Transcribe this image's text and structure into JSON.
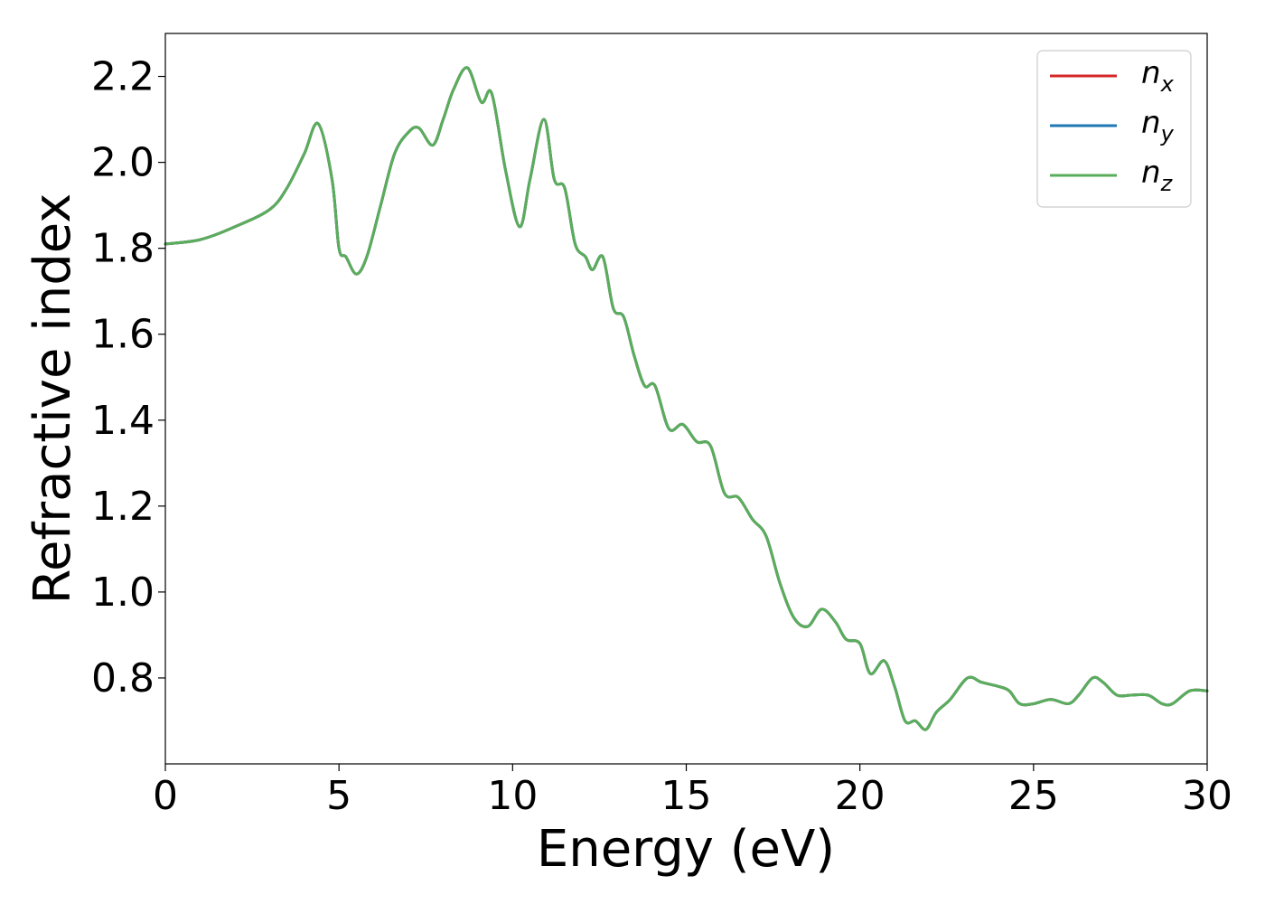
{
  "chart_data": {
    "type": "line",
    "xlabel": "Energy (eV)",
    "ylabel": "Refractive index",
    "xlim": [
      0,
      30
    ],
    "ylim": [
      0.6,
      2.3
    ],
    "xticks": [
      0,
      5,
      10,
      15,
      20,
      25,
      30
    ],
    "xtick_labels": [
      "0",
      "5",
      "10",
      "15",
      "20",
      "25",
      "30"
    ],
    "yticks": [
      0.8,
      1.0,
      1.2,
      1.4,
      1.6,
      1.8,
      2.0,
      2.2
    ],
    "ytick_labels": [
      "0.8",
      "1.0",
      "1.2",
      "1.4",
      "1.6",
      "1.8",
      "2.0",
      "2.2"
    ],
    "grid": false,
    "legend_position": "top-right",
    "legend": [
      {
        "base": "n",
        "sub": "x",
        "color": "#d62728"
      },
      {
        "base": "n",
        "sub": "y",
        "color": "#1f77b4"
      },
      {
        "base": "n",
        "sub": "z",
        "color": "#5aad5a"
      }
    ],
    "x": [
      0,
      1,
      2,
      3,
      3.5,
      4,
      4.4,
      4.8,
      5.0,
      5.2,
      5.5,
      5.8,
      6.2,
      6.6,
      7.0,
      7.3,
      7.7,
      8.0,
      8.3,
      8.7,
      9.1,
      9.4,
      9.8,
      10.2,
      10.5,
      10.9,
      11.2,
      11.5,
      11.8,
      12.1,
      12.3,
      12.6,
      12.9,
      13.2,
      13.5,
      13.8,
      14.1,
      14.5,
      14.9,
      15.3,
      15.7,
      16.1,
      16.5,
      16.9,
      17.3,
      17.7,
      18.1,
      18.5,
      18.9,
      19.3,
      19.6,
      20.0,
      20.3,
      20.7,
      21.0,
      21.3,
      21.6,
      21.9,
      22.2,
      22.6,
      23.1,
      23.5,
      24.0,
      24.3,
      24.6,
      25.0,
      25.5,
      26.0,
      26.3,
      26.7,
      27.0,
      27.4,
      27.8,
      28.3,
      28.7,
      29.0,
      29.5,
      30.0
    ],
    "series": [
      {
        "color": "#d62728",
        "values": [
          1.81,
          1.82,
          1.85,
          1.89,
          1.94,
          2.02,
          2.09,
          1.96,
          1.8,
          1.78,
          1.74,
          1.78,
          1.9,
          2.02,
          2.07,
          2.08,
          2.04,
          2.1,
          2.17,
          2.22,
          2.14,
          2.16,
          1.98,
          1.85,
          1.96,
          2.1,
          1.96,
          1.94,
          1.81,
          1.78,
          1.75,
          1.78,
          1.66,
          1.64,
          1.55,
          1.48,
          1.48,
          1.38,
          1.39,
          1.35,
          1.34,
          1.23,
          1.22,
          1.17,
          1.13,
          1.02,
          0.94,
          0.92,
          0.96,
          0.93,
          0.89,
          0.88,
          0.81,
          0.84,
          0.78,
          0.7,
          0.7,
          0.68,
          0.72,
          0.75,
          0.8,
          0.79,
          0.78,
          0.77,
          0.74,
          0.74,
          0.75,
          0.74,
          0.76,
          0.8,
          0.79,
          0.76,
          0.76,
          0.76,
          0.74,
          0.74,
          0.77,
          0.77
        ]
      },
      {
        "color": "#1f77b4",
        "values": [
          1.81,
          1.82,
          1.85,
          1.89,
          1.94,
          2.02,
          2.09,
          1.96,
          1.8,
          1.78,
          1.74,
          1.78,
          1.9,
          2.02,
          2.07,
          2.08,
          2.04,
          2.1,
          2.17,
          2.22,
          2.14,
          2.16,
          1.98,
          1.85,
          1.96,
          2.1,
          1.96,
          1.94,
          1.81,
          1.78,
          1.75,
          1.78,
          1.66,
          1.64,
          1.55,
          1.48,
          1.48,
          1.38,
          1.39,
          1.35,
          1.34,
          1.23,
          1.22,
          1.17,
          1.13,
          1.02,
          0.94,
          0.92,
          0.96,
          0.93,
          0.89,
          0.88,
          0.81,
          0.84,
          0.78,
          0.7,
          0.7,
          0.68,
          0.72,
          0.75,
          0.8,
          0.79,
          0.78,
          0.77,
          0.74,
          0.74,
          0.75,
          0.74,
          0.76,
          0.8,
          0.79,
          0.76,
          0.76,
          0.76,
          0.74,
          0.74,
          0.77,
          0.77
        ]
      },
      {
        "color": "#5aad5a",
        "values": [
          1.81,
          1.82,
          1.85,
          1.89,
          1.94,
          2.02,
          2.09,
          1.96,
          1.8,
          1.78,
          1.74,
          1.78,
          1.9,
          2.02,
          2.07,
          2.08,
          2.04,
          2.1,
          2.17,
          2.22,
          2.14,
          2.16,
          1.98,
          1.85,
          1.96,
          2.1,
          1.96,
          1.94,
          1.81,
          1.78,
          1.75,
          1.78,
          1.66,
          1.64,
          1.55,
          1.48,
          1.48,
          1.38,
          1.39,
          1.35,
          1.34,
          1.23,
          1.22,
          1.17,
          1.13,
          1.02,
          0.94,
          0.92,
          0.96,
          0.93,
          0.89,
          0.88,
          0.81,
          0.84,
          0.78,
          0.7,
          0.7,
          0.68,
          0.72,
          0.75,
          0.8,
          0.79,
          0.78,
          0.77,
          0.74,
          0.74,
          0.75,
          0.74,
          0.76,
          0.8,
          0.79,
          0.76,
          0.76,
          0.76,
          0.74,
          0.74,
          0.77,
          0.77
        ]
      }
    ]
  }
}
